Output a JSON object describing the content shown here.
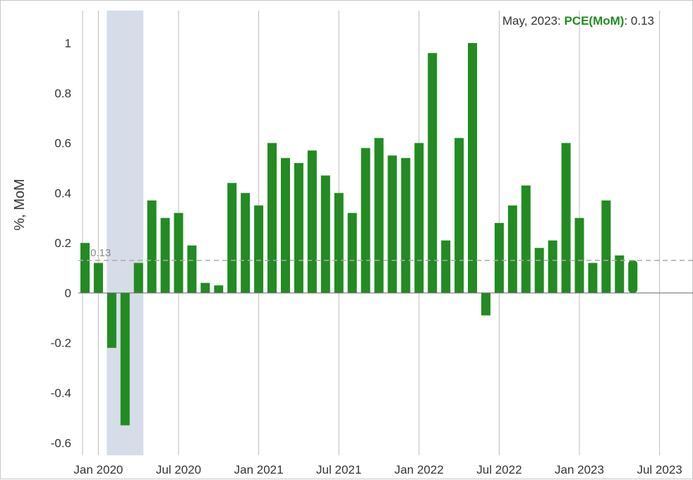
{
  "readout": {
    "date": "May, 2023",
    "sep1": ": ",
    "series": "PCE(MoM)",
    "sep2": ": ",
    "value": "0.13"
  },
  "reference_line": {
    "value": 0.13,
    "label": "0.13"
  },
  "colors": {
    "bar": "#228b22",
    "recession": "#d6dde8",
    "grid": "#bcbcbc",
    "zero_line": "#666666",
    "reference": "#aaaaaa"
  },
  "chart_data": {
    "type": "bar",
    "ylabel": "%, MoM",
    "ylim": [
      -0.65,
      1.13
    ],
    "yticks": [
      "1",
      "0.8",
      "0.6",
      "0.4",
      "0.2",
      "0",
      "-0.2",
      "-0.4",
      "-0.6"
    ],
    "ytick_values": [
      1,
      0.8,
      0.6,
      0.4,
      0.2,
      0,
      -0.2,
      -0.4,
      -0.6
    ],
    "xticks": [
      {
        "label": "Jan 2020",
        "date": "2020-01"
      },
      {
        "label": "Jul 2020",
        "date": "2020-07"
      },
      {
        "label": "Jan 2021",
        "date": "2021-01"
      },
      {
        "label": "Jul 2021",
        "date": "2021-07"
      },
      {
        "label": "Jan 2022",
        "date": "2022-01"
      },
      {
        "label": "Jul 2022",
        "date": "2022-07"
      },
      {
        "label": "Jan 2023",
        "date": "2023-01"
      },
      {
        "label": "Jul 2023",
        "date": "2023-07"
      }
    ],
    "xlim": [
      "2019-12",
      "2023-09"
    ],
    "shaded_periods": [
      {
        "start": "2020-02",
        "end": "2020-04"
      }
    ],
    "series": [
      {
        "name": "PCE(MoM)",
        "dates": [
          "2019-12",
          "2020-01",
          "2020-02",
          "2020-03",
          "2020-04",
          "2020-05",
          "2020-06",
          "2020-07",
          "2020-08",
          "2020-09",
          "2020-10",
          "2020-11",
          "2020-12",
          "2021-01",
          "2021-02",
          "2021-03",
          "2021-04",
          "2021-05",
          "2021-06",
          "2021-07",
          "2021-08",
          "2021-09",
          "2021-10",
          "2021-11",
          "2021-12",
          "2022-01",
          "2022-02",
          "2022-03",
          "2022-04",
          "2022-05",
          "2022-06",
          "2022-07",
          "2022-08",
          "2022-09",
          "2022-10",
          "2022-11",
          "2022-12",
          "2023-01",
          "2023-02",
          "2023-03",
          "2023-04",
          "2023-05"
        ],
        "values": [
          0.2,
          0.12,
          -0.22,
          -0.53,
          0.12,
          0.37,
          0.3,
          0.32,
          0.19,
          0.04,
          0.03,
          0.44,
          0.4,
          0.35,
          0.6,
          0.54,
          0.52,
          0.57,
          0.47,
          0.4,
          0.32,
          0.58,
          0.62,
          0.55,
          0.54,
          0.6,
          0.96,
          0.21,
          0.62,
          1.0,
          -0.09,
          0.28,
          0.35,
          0.43,
          0.18,
          0.21,
          0.6,
          0.3,
          0.12,
          0.37,
          0.15,
          0.13
        ]
      }
    ]
  }
}
